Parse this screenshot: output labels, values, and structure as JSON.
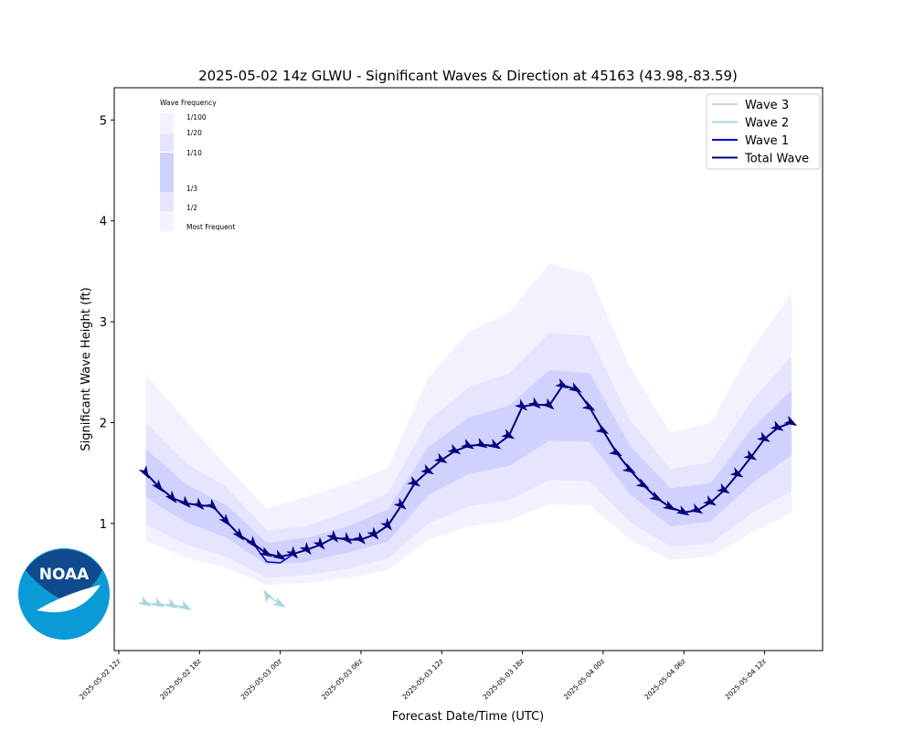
{
  "logo": {
    "text": "NOAA"
  },
  "chart_data": {
    "type": "line",
    "title": "2025-05-02 14z GLWU - Significant Waves & Direction at 45163 (43.98,-83.59)",
    "xlabel": "Forecast Date/Time (UTC)",
    "ylabel": "Significant Wave Height (ft)",
    "x": [
      2,
      3,
      4,
      5,
      6,
      7,
      8,
      9,
      10,
      11,
      12,
      13,
      14,
      15,
      16,
      17,
      18,
      19,
      20,
      21,
      22,
      23,
      24,
      25,
      26,
      27,
      28,
      29,
      30,
      31,
      32,
      33,
      34,
      35,
      36,
      37,
      38,
      39,
      40,
      41,
      42,
      43,
      44,
      45,
      46,
      47,
      48,
      49,
      50
    ],
    "xlim": [
      -0.34,
      52.31
    ],
    "xticks": [
      {
        "value": 0,
        "label": "2025-05-02 12z"
      },
      {
        "value": 6,
        "label": "2025-05-02 18z"
      },
      {
        "value": 12,
        "label": "2025-05-03 00z"
      },
      {
        "value": 18,
        "label": "2025-05-03 06z"
      },
      {
        "value": 24,
        "label": "2025-05-03 12z"
      },
      {
        "value": 30,
        "label": "2025-05-03 18z"
      },
      {
        "value": 36,
        "label": "2025-05-04 00z"
      },
      {
        "value": 42,
        "label": "2025-05-04 06z"
      },
      {
        "value": 48,
        "label": "2025-05-04 12z"
      }
    ],
    "ylim": [
      -0.26,
      5.32
    ],
    "yticks": [
      1,
      2,
      3,
      4,
      5
    ],
    "legend": "upper right",
    "series": [
      {
        "name": "Wave 3",
        "color": "#d3d3d3",
        "values": [
          null,
          null,
          null,
          null,
          null,
          null,
          null,
          null,
          null,
          null,
          null,
          null,
          null,
          null,
          null,
          null,
          null,
          null,
          null,
          null,
          null,
          null,
          null,
          null,
          null,
          null,
          null,
          null,
          null,
          null,
          null,
          null,
          null,
          null,
          null,
          null,
          null,
          null,
          null,
          null,
          null,
          null,
          null,
          null,
          null,
          null,
          null,
          null,
          null
        ]
      },
      {
        "name": "Wave 2",
        "color": "#a8d8dc",
        "values": [
          0.21,
          0.2,
          0.19,
          0.17,
          null,
          null,
          null,
          null,
          null,
          0.29,
          0.2,
          null,
          null,
          null,
          null,
          null,
          null,
          null,
          null,
          null,
          null,
          null,
          null,
          null,
          null,
          null,
          null,
          null,
          null,
          null,
          null,
          null,
          null,
          null,
          null,
          null,
          null,
          null,
          null,
          null,
          null,
          null,
          null,
          null,
          null,
          null,
          null,
          null,
          null
        ],
        "direction": [
          300,
          300,
          300,
          300,
          null,
          null,
          null,
          null,
          null,
          150,
          300,
          null,
          null,
          null,
          null,
          null,
          null,
          null,
          null,
          null,
          null,
          null,
          null,
          null,
          null,
          null,
          null,
          null,
          null,
          null,
          null,
          null,
          null,
          null,
          null,
          null,
          null,
          null,
          null,
          null,
          null,
          null,
          null,
          null,
          null,
          null,
          null,
          null,
          null
        ]
      },
      {
        "name": "Wave 1",
        "color": "#0000cd",
        "values": [
          1.5,
          1.36,
          1.25,
          1.2,
          1.18,
          1.17,
          1.02,
          0.88,
          0.8,
          0.62,
          0.61,
          0.7,
          0.74,
          0.79,
          0.86,
          0.84,
          0.84,
          0.89,
          0.98,
          1.18,
          1.4,
          1.52,
          1.63,
          1.72,
          1.77,
          1.78,
          1.77,
          1.87,
          2.16,
          2.18,
          2.17,
          2.37,
          2.33,
          2.15,
          1.92,
          1.7,
          1.53,
          1.38,
          1.25,
          1.16,
          1.11,
          1.13,
          1.21,
          1.33,
          1.49,
          1.66,
          1.84,
          1.95,
          2.0
        ]
      },
      {
        "name": "Total Wave",
        "color": "#000080",
        "values": [
          1.5,
          1.36,
          1.25,
          1.2,
          1.18,
          1.17,
          1.02,
          0.88,
          0.8,
          0.7,
          0.67,
          0.7,
          0.74,
          0.79,
          0.86,
          0.84,
          0.84,
          0.89,
          0.98,
          1.18,
          1.4,
          1.52,
          1.63,
          1.72,
          1.77,
          1.78,
          1.77,
          1.87,
          2.16,
          2.18,
          2.17,
          2.37,
          2.33,
          2.15,
          1.92,
          1.7,
          1.53,
          1.38,
          1.25,
          1.16,
          1.11,
          1.13,
          1.21,
          1.33,
          1.49,
          1.66,
          1.84,
          1.95,
          2.0
        ],
        "direction": [
          330,
          320,
          320,
          315,
          315,
          315,
          320,
          320,
          320,
          300,
          300,
          320,
          320,
          320,
          320,
          315,
          315,
          320,
          320,
          310,
          300,
          300,
          300,
          300,
          300,
          300,
          300,
          300,
          310,
          310,
          310,
          300,
          300,
          300,
          300,
          300,
          300,
          300,
          300,
          300,
          300,
          300,
          300,
          300,
          300,
          300,
          300,
          300,
          300
        ]
      }
    ],
    "bands": {
      "title": "Wave Frequency",
      "color": "#0000ff",
      "x": [
        2,
        5,
        8,
        11,
        14,
        17,
        20,
        23,
        26,
        29,
        32,
        35,
        38,
        41,
        44,
        47,
        50
      ],
      "levels": [
        {
          "name": "1/100",
          "values": [
            2.48,
            2.02,
            1.57,
            1.15,
            1.27,
            1.4,
            1.55,
            2.45,
            2.9,
            3.09,
            3.58,
            3.47,
            2.55,
            1.9,
            2.0,
            2.72,
            3.28
          ]
        },
        {
          "name": "1/20",
          "values": [
            2.0,
            1.6,
            1.36,
            0.93,
            0.98,
            1.12,
            1.3,
            2.02,
            2.35,
            2.49,
            2.89,
            2.86,
            2.03,
            1.54,
            1.61,
            2.21,
            2.66
          ]
        },
        {
          "name": "1/10",
          "values": [
            1.74,
            1.39,
            1.18,
            0.81,
            0.86,
            0.97,
            1.14,
            1.76,
            2.05,
            2.17,
            2.52,
            2.49,
            1.77,
            1.35,
            1.4,
            1.93,
            2.32
          ]
        },
        {
          "name": "1/3",
          "values": [
            1.26,
            1.01,
            0.86,
            0.59,
            0.62,
            0.71,
            0.82,
            1.28,
            1.49,
            1.57,
            1.82,
            1.81,
            1.29,
            0.97,
            1.02,
            1.39,
            1.68
          ]
        },
        {
          "name": "1/2",
          "values": [
            0.99,
            0.79,
            0.67,
            0.46,
            0.49,
            0.55,
            0.65,
            1.0,
            1.17,
            1.23,
            1.43,
            1.42,
            1.01,
            0.77,
            0.8,
            1.1,
            1.32
          ]
        },
        {
          "name": "Most Frequent",
          "values": [
            0.83,
            0.66,
            0.56,
            0.39,
            0.41,
            0.46,
            0.54,
            0.84,
            0.97,
            1.03,
            1.19,
            1.18,
            0.84,
            0.64,
            0.67,
            0.91,
            1.1
          ]
        }
      ]
    }
  }
}
